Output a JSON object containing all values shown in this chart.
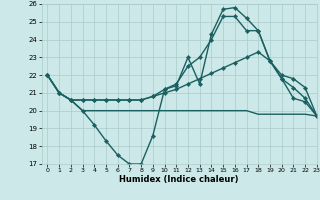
{
  "xlabel": "Humidex (Indice chaleur)",
  "xlim": [
    -0.5,
    23
  ],
  "ylim": [
    17,
    26
  ],
  "xticks": [
    0,
    1,
    2,
    3,
    4,
    5,
    6,
    7,
    8,
    9,
    10,
    11,
    12,
    13,
    14,
    15,
    16,
    17,
    18,
    19,
    20,
    21,
    22,
    23
  ],
  "yticks": [
    17,
    18,
    19,
    20,
    21,
    22,
    23,
    24,
    25,
    26
  ],
  "bg_color": "#cce8e8",
  "grid_color": "#aacccc",
  "line_color": "#1a6060",
  "lines": [
    {
      "x": [
        0,
        1,
        2,
        3,
        4,
        5,
        6,
        7,
        8,
        9,
        10,
        11,
        12,
        13,
        14,
        15,
        16,
        17,
        18,
        19,
        20,
        21,
        22,
        23
      ],
      "y": [
        22,
        21,
        20.6,
        20.0,
        19.2,
        18.3,
        17.5,
        17.0,
        17.0,
        18.6,
        21.2,
        21.4,
        23.0,
        21.5,
        24.3,
        25.7,
        25.8,
        25.2,
        24.5,
        22.8,
        21.8,
        20.7,
        20.5,
        19.7
      ],
      "marker": "D",
      "markersize": 2.2,
      "linewidth": 1.0,
      "has_marker": true
    },
    {
      "x": [
        0,
        1,
        2,
        3,
        4,
        5,
        6,
        7,
        8,
        9,
        10,
        11,
        12,
        13,
        14,
        15,
        16,
        17,
        18,
        19,
        20,
        21,
        22,
        23
      ],
      "y": [
        22,
        21,
        20.6,
        20.6,
        20.6,
        20.6,
        20.6,
        20.6,
        20.6,
        20.8,
        21.0,
        21.2,
        21.5,
        21.8,
        22.1,
        22.4,
        22.7,
        23.0,
        23.3,
        22.8,
        22.0,
        21.8,
        21.3,
        19.7
      ],
      "marker": "D",
      "markersize": 2.2,
      "linewidth": 1.0,
      "has_marker": true
    },
    {
      "x": [
        0,
        1,
        2,
        3,
        4,
        5,
        6,
        7,
        8,
        9,
        10,
        11,
        12,
        13,
        14,
        15,
        16,
        17,
        18,
        19,
        20,
        21,
        22,
        23
      ],
      "y": [
        22,
        21,
        20.6,
        20.6,
        20.6,
        20.6,
        20.6,
        20.6,
        20.6,
        20.8,
        21.2,
        21.5,
        22.5,
        23.0,
        24.0,
        25.3,
        25.3,
        24.5,
        24.5,
        22.8,
        21.8,
        21.3,
        20.7,
        19.7
      ],
      "marker": "D",
      "markersize": 2.2,
      "linewidth": 1.0,
      "has_marker": true
    },
    {
      "x": [
        0,
        1,
        2,
        3,
        4,
        5,
        6,
        7,
        8,
        9,
        10,
        11,
        12,
        13,
        14,
        15,
        16,
        17,
        18,
        19,
        20,
        21,
        22,
        23
      ],
      "y": [
        22,
        21,
        20.6,
        20.0,
        20.0,
        20.0,
        20.0,
        20.0,
        20.0,
        20.0,
        20.0,
        20.0,
        20.0,
        20.0,
        20.0,
        20.0,
        20.0,
        20.0,
        19.8,
        19.8,
        19.8,
        19.8,
        19.8,
        19.7
      ],
      "marker": null,
      "markersize": 0,
      "linewidth": 1.0,
      "has_marker": false
    }
  ]
}
